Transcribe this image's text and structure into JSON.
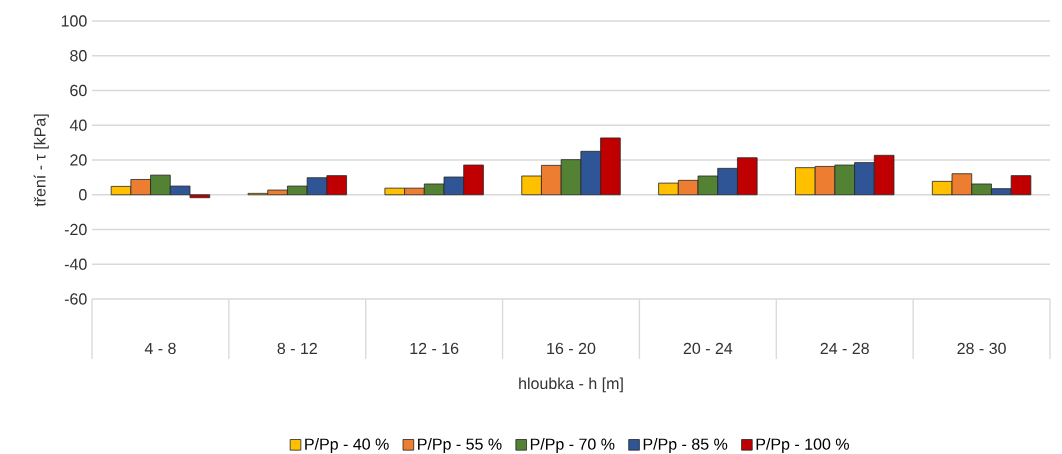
{
  "chart_data": {
    "type": "bar",
    "xlabel": "hloubka - h [m]",
    "ylabel": "tření - τ [kPa]",
    "categories": [
      "4 - 8",
      "8 - 12",
      "12 - 16",
      "16 - 20",
      "20 - 24",
      "24 - 28",
      "28 - 30"
    ],
    "series": [
      {
        "name": "P/Pp - 40 %",
        "color": "#ffc000",
        "values": [
          4.8,
          0.8,
          3.8,
          10.8,
          6.7,
          15.6,
          7.7
        ]
      },
      {
        "name": "P/Pp - 55 %",
        "color": "#ed7d31",
        "values": [
          8.8,
          2.7,
          3.8,
          16.9,
          8.3,
          16.3,
          12.1
        ]
      },
      {
        "name": "P/Pp - 70 %",
        "color": "#548235",
        "values": [
          11.3,
          5,
          6.2,
          20.2,
          10.8,
          17.1,
          6.2
        ]
      },
      {
        "name": "P/Pp - 85 %",
        "color": "#2f5597",
        "values": [
          5,
          9.8,
          10.2,
          25,
          15.2,
          18.5,
          3.5
        ]
      },
      {
        "name": "P/Pp - 100 %",
        "color": "#c00000",
        "values": [
          -1.7,
          11,
          17.1,
          32.7,
          21.3,
          22.7,
          11
        ]
      }
    ],
    "ylim": [
      -60,
      100
    ],
    "yticks": [
      -60,
      -40,
      -20,
      0,
      20,
      40,
      60,
      80,
      100
    ],
    "grid": "y",
    "legend": "bottom"
  }
}
